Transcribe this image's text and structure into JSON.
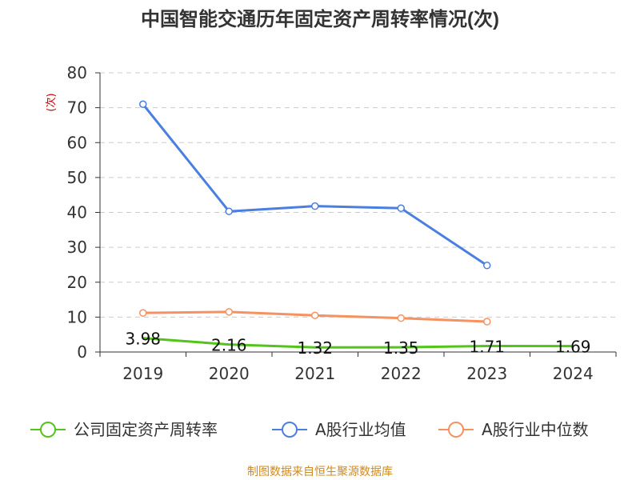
{
  "title": "中国智能交通历年固定资产周转率情况(次)",
  "footer": "制图数据来自恒生聚源数据库",
  "colors": {
    "title": "#333333",
    "axis": "#333333",
    "grid": "#cccccc",
    "unit": "#cc0000",
    "footer": "#d08a1e",
    "company": "#52c41a",
    "industry_avg": "#4a7fe0",
    "industry_median": "#f59260"
  },
  "chart_data": {
    "type": "line",
    "categories": [
      "2019",
      "2020",
      "2021",
      "2022",
      "2023",
      "2024"
    ],
    "y_unit_label": "(次)",
    "ylim": [
      0,
      80
    ],
    "y_ticks": [
      0,
      10,
      20,
      30,
      40,
      50,
      60,
      70,
      80
    ],
    "grid": true,
    "legend_position": "bottom",
    "series": [
      {
        "name": "公司固定资产周转率",
        "color_key": "company",
        "values": [
          3.98,
          2.16,
          1.32,
          1.35,
          1.71,
          1.69
        ],
        "labels": [
          "3.98",
          "2.16",
          "1.32",
          "1.35",
          "1.71",
          "1.69"
        ],
        "show_points": false
      },
      {
        "name": "A股行业均值",
        "color_key": "industry_avg",
        "values": [
          71,
          40.3,
          41.8,
          41.2,
          24.8,
          null
        ],
        "show_points": true
      },
      {
        "name": "A股行业中位数",
        "color_key": "industry_median",
        "values": [
          11.2,
          11.5,
          10.5,
          9.7,
          8.7,
          null
        ],
        "show_points": true
      }
    ]
  }
}
